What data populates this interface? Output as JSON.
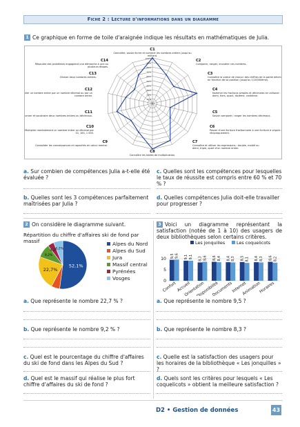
{
  "header": {
    "title": "Fiche 2 : Lecture d'informations dans un diagramme"
  },
  "section1": {
    "number": "1",
    "intro": "Ce graphique en forme de toile d'araignée indique les résultats en mathématiques de Julia."
  },
  "radar": {
    "tick_labels": [
      "10%",
      "20%",
      "30%",
      "40%",
      "50%",
      "60%",
      "70%",
      "80%",
      "90%",
      "100%"
    ],
    "competences": [
      {
        "code": "C1",
        "text": "Connaître, savoir écrire et nommer les nombres entiers jusqu'au milliard."
      },
      {
        "code": "C2",
        "text": "Comparer, ranger, encadrer ces nombres."
      },
      {
        "code": "C3",
        "text": "Connaître la valeur de chacun des chiffres de la partie décimale en fonction de sa position (jusqu'au 1/10000ème)."
      },
      {
        "code": "C4",
        "text": "Nommer les fractions simples et décimales en utilisant : demi, tiers, quart, dixième, centième."
      },
      {
        "code": "C5",
        "text": "Savoir comparer, ranger les nombres décimaux."
      },
      {
        "code": "C6",
        "text": "Passer d'une écriture fractionnaire à une écriture à virgule et réciproquement."
      },
      {
        "code": "C7",
        "text": "Connaître et utiliser les expressions : double, moitié ou demi, triple, quart d'un nombre entier."
      },
      {
        "code": "C8",
        "text": "Connaître les tables de multiplication."
      },
      {
        "code": "C9",
        "text": "Consolider les connaissances et capacités en calcul mental."
      },
      {
        "code": "C10",
        "text": "Multiplier mentalement un nombre entier ou décimal par 10, 100, 1 000."
      },
      {
        "code": "C11",
        "text": "Additionner et soustraire deux nombres entiers ou décimaux."
      },
      {
        "code": "C12",
        "text": "Multiplier un nombre entier par un nombre décimal ou par un nombre entier."
      },
      {
        "code": "C13",
        "text": "Diviser deux nombres entiers."
      },
      {
        "code": "C14",
        "text": "Résoudre des problèmes engageant une démarche à une ou plusieurs étapes."
      }
    ]
  },
  "chart_data": [
    {
      "type": "radar",
      "categories": [
        "C1",
        "C2",
        "C3",
        "C4",
        "C5",
        "C6",
        "C7",
        "C8",
        "C9",
        "C10",
        "C11",
        "C12",
        "C13",
        "C14"
      ],
      "values": [
        100,
        70,
        60,
        100,
        40,
        50,
        90,
        100,
        70,
        60,
        80,
        60,
        50,
        70
      ],
      "ylim": [
        0,
        100
      ],
      "grid": true
    },
    {
      "type": "pie",
      "title": "Répartition du chiffre d'affaires ski de fond par massif",
      "categories": [
        "Alpes du Nord",
        "Alpes du Sud",
        "Jura",
        "Massif central",
        "Pyrénées",
        "Vosges"
      ],
      "values": [
        52.1,
        5.6,
        22.7,
        9.2,
        4.2,
        6.2
      ],
      "data_labels": [
        "52,1%",
        "",
        "22,7%",
        "9,2%",
        "4,2%",
        "6,2%"
      ],
      "colors": [
        "#1f4e9a",
        "#e8531e",
        "#f2c21b",
        "#5a9a2e",
        "#a0244a",
        "#87c3ea"
      ],
      "legend": "right"
    },
    {
      "type": "bar",
      "categories": [
        "Confort",
        "Accueil",
        "Orientation",
        "Disponibilité",
        "Documents",
        "Internet",
        "Animation",
        "Horaires"
      ],
      "series": [
        {
          "name": "Les jonquilles",
          "values": [
            9.5,
            9.1,
            8.3,
            8.6,
            8.4,
            8.5,
            8.4,
            8.6
          ],
          "color": "#1f3f86"
        },
        {
          "name": "Les coquelicots",
          "values": [
            9.6,
            9.1,
            8.6,
            8.4,
            8.3,
            8.1,
            8.3,
            8.2
          ],
          "color": "#5b9bd5"
        }
      ],
      "data_labels": [
        [
          "9,5",
          "9,6"
        ],
        [
          "9,1",
          "9,1"
        ],
        [
          "8,3",
          "8,6"
        ],
        [
          "8,6",
          "8,4"
        ],
        [
          "8,4",
          "8,3"
        ],
        [
          "8,5",
          "8,1"
        ],
        [
          "8,4",
          "8,3"
        ],
        [
          "8,6",
          "8,2"
        ]
      ],
      "yticks": [
        0,
        5,
        10
      ],
      "ylim": [
        0,
        10
      ],
      "legend": "top"
    }
  ],
  "questions_1": {
    "a": {
      "letter": "a.",
      "text": " Sur combien de compétences Julia a-t-elle été évaluée ?"
    },
    "b": {
      "letter": "b.",
      "text": " Quelles sont les 3 compétences parfaitement maîtrisées par Julia ?"
    },
    "c": {
      "letter": "c.",
      "text": " Quelles sont les compétences pour lesquelles le taux de réussite est compris entre 60 % et 70 % ?"
    },
    "d": {
      "letter": "d.",
      "text": " Quelles compétences Julia doit-elle travailler pour progresser ?"
    }
  },
  "section2": {
    "number": "2",
    "intro": "On considère le diagramme suivant.",
    "a": {
      "letter": "a.",
      "text": " Que représente le nombre 22,7 % ?"
    },
    "b": {
      "letter": "b.",
      "text": " Que représente le nombre 9,2 % ?"
    },
    "c": {
      "letter": "c.",
      "text": " Quel est le pourcentage du chiffre d'affaires du ski de fond dans les Alpes du Sud ?"
    },
    "d": {
      "letter": "d.",
      "text": " Quel est le massif qui réalise le plus fort chiffre d'affaires du ski de fond ?"
    }
  },
  "section3": {
    "number": "3",
    "intro": "Voici un diagramme représentant la satisfaction (notée de 1 à 10) des usagers de deux bibliothèques selon certains critères.",
    "a": {
      "letter": "a.",
      "text": " Que représente le nombre 9,5 ?"
    },
    "b": {
      "letter": "b.",
      "text": " Que représente le nombre 8,3 ?"
    },
    "c": {
      "letter": "c.",
      "text": " Quelle est la satisfaction des usagers pour les horaires de la bibliothèque « Les jonquilles » ?"
    },
    "d": {
      "letter": "d.",
      "text": " Quels sont les critères pour lesquels « Les coquelicots » obtient la meilleure satisfaction ?"
    }
  },
  "footer": {
    "label": "D2 • Gestion de données",
    "page": "43"
  }
}
